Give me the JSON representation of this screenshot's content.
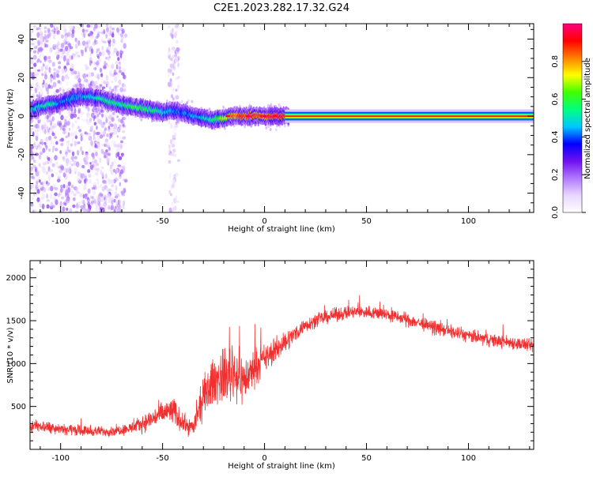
{
  "figure": {
    "title": "C2E1.2023.282.17.32.G24"
  },
  "colors": {
    "snr_line": "#f03030",
    "frame": "#000000",
    "signal_band": "#e01010"
  },
  "colorbar": {
    "label": "Normalized spectral amplitude",
    "ticks": [
      "0.0",
      "0.2",
      "0.4",
      "0.6",
      "0.8"
    ],
    "tick_values": [
      0.0,
      0.2,
      0.4,
      0.6,
      0.8
    ],
    "range": [
      0,
      1
    ],
    "colormap": [
      "#ffffff",
      "#e8d6ff",
      "#b078ff",
      "#7010f0",
      "#0000ff",
      "#00c8ff",
      "#00ff80",
      "#40ff00",
      "#ffff00",
      "#ff8000",
      "#ff0000",
      "#ff0080"
    ]
  },
  "chart_data": [
    {
      "type": "heatmap",
      "title": "",
      "xlabel": "Height of straight line (km)",
      "ylabel": "Frequency (Hz)",
      "xlim": [
        -115,
        132
      ],
      "ylim": [
        -50,
        48
      ],
      "x_ticks": [
        -100,
        -50,
        0,
        50,
        100
      ],
      "x_tick_labels": [
        "-100",
        "-50",
        "0",
        "50",
        "100"
      ],
      "y_ticks": [
        -40,
        -20,
        0,
        20,
        40
      ],
      "y_tick_labels": [
        "-40",
        "-20",
        "0",
        "20",
        "40"
      ],
      "ridge": {
        "x": [
          -115,
          -110,
          -105,
          -100,
          -95,
          -90,
          -85,
          -80,
          -75,
          -70,
          -65,
          -60,
          -55,
          -50,
          -45,
          -40,
          -35,
          -30,
          -25,
          -20,
          -15,
          -10,
          -5,
          0,
          5,
          10,
          132
        ],
        "frequency": [
          3,
          5,
          6,
          7,
          9,
          10,
          10,
          9,
          7,
          6,
          5,
          4,
          3,
          2,
          3,
          2,
          0,
          -1,
          -2,
          -1,
          0,
          0,
          0,
          0,
          0,
          0,
          0
        ],
        "amplitude": [
          0.45,
          0.5,
          0.55,
          0.4,
          0.45,
          0.45,
          0.5,
          0.55,
          0.55,
          0.55,
          0.6,
          0.6,
          0.55,
          0.5,
          0.45,
          0.4,
          0.45,
          0.5,
          0.55,
          0.7,
          0.85,
          0.9,
          0.9,
          0.9,
          0.95,
          0.95,
          0.95
        ]
      },
      "noise_columns": [
        {
          "x_range": [
            -115,
            -68
          ],
          "level": 0.15
        },
        {
          "x_range": [
            -47,
            -42
          ],
          "level": 0.1
        }
      ]
    },
    {
      "type": "line",
      "title": "",
      "xlabel": "Height of straight line (km)",
      "ylabel": "SNR (10 * v/v)",
      "xlim": [
        -115,
        132
      ],
      "ylim": [
        0,
        2200
      ],
      "x_ticks": [
        -100,
        -50,
        0,
        50,
        100
      ],
      "x_tick_labels": [
        "-100",
        "-50",
        "0",
        "50",
        "100"
      ],
      "y_ticks": [
        500,
        1000,
        1500,
        2000
      ],
      "y_tick_labels": [
        "500",
        "1000",
        "1500",
        "2000"
      ],
      "series": [
        {
          "x": [
            -115,
            -105,
            -95,
            -85,
            -75,
            -65,
            -58,
            -50,
            -45,
            -40,
            -35,
            -30,
            -25,
            -20,
            -15,
            -10,
            -5,
            0,
            5,
            10,
            15,
            20,
            25,
            30,
            35,
            40,
            45,
            50,
            55,
            60,
            65,
            70,
            75,
            80,
            85,
            90,
            95,
            100,
            105,
            110,
            115,
            120,
            125,
            132
          ],
          "mean": [
            280,
            260,
            230,
            210,
            210,
            250,
            320,
            420,
            450,
            300,
            250,
            600,
            800,
            850,
            900,
            800,
            950,
            1050,
            1150,
            1250,
            1350,
            1450,
            1500,
            1540,
            1570,
            1590,
            1600,
            1600,
            1590,
            1570,
            1540,
            1510,
            1480,
            1440,
            1410,
            1380,
            1350,
            1320,
            1300,
            1280,
            1260,
            1250,
            1230,
            1200
          ],
          "spread": [
            100,
            100,
            90,
            80,
            80,
            100,
            150,
            200,
            250,
            150,
            150,
            350,
            400,
            450,
            500,
            400,
            300,
            250,
            200,
            180,
            140,
            120,
            110,
            110,
            110,
            110,
            110,
            110,
            110,
            110,
            110,
            110,
            110,
            110,
            110,
            110,
            110,
            110,
            110,
            110,
            110,
            110,
            110,
            110
          ]
        }
      ]
    }
  ]
}
